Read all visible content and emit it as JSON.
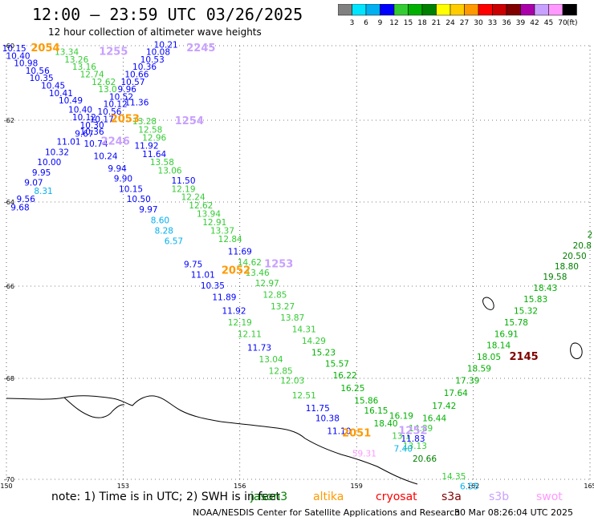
{
  "header": {
    "title": "12:00 – 23:59 UTC 03/26/2025",
    "subtitle": "12 hour collection of altimeter wave heights"
  },
  "legend": {
    "unit": "(ft)",
    "bins": [
      {
        "label": "3",
        "color": "#808080"
      },
      {
        "label": "6",
        "color": "#00e5ff"
      },
      {
        "label": "9",
        "color": "#00b0f0"
      },
      {
        "label": "12",
        "color": "#0000ff"
      },
      {
        "label": "15",
        "color": "#33cc33"
      },
      {
        "label": "18",
        "color": "#00b000"
      },
      {
        "label": "21",
        "color": "#008000"
      },
      {
        "label": "24",
        "color": "#ffff00"
      },
      {
        "label": "27",
        "color": "#ffcc00"
      },
      {
        "label": "30",
        "color": "#ff9900"
      },
      {
        "label": "33",
        "color": "#ff0000"
      },
      {
        "label": "36",
        "color": "#cc0000"
      },
      {
        "label": "39",
        "color": "#800000"
      },
      {
        "label": "42",
        "color": "#aa00aa"
      },
      {
        "label": "45",
        "color": "#c8a0ff"
      },
      {
        "label": "70",
        "color": "#ff99ff"
      },
      {
        "label": "",
        "color": "#000000"
      }
    ]
  },
  "map": {
    "lon_ticks": [
      "150",
      "153",
      "156",
      "159",
      "162",
      "165"
    ],
    "lat_ticks": [
      "-60",
      "-62",
      "-64",
      "-66",
      "-68",
      "-70"
    ],
    "lon_range": [
      150,
      165
    ],
    "lat_range": [
      -60,
      -70
    ]
  },
  "pass_times": [
    {
      "text": "2054",
      "lon": 151.0,
      "lat": -60.15,
      "color": "#ff9900"
    },
    {
      "text": "1255",
      "lon": 152.75,
      "lat": -60.25,
      "color": "#c8a0ff"
    },
    {
      "text": "2245",
      "lon": 155.0,
      "lat": -60.15,
      "color": "#c8a0ff"
    },
    {
      "text": "2053",
      "lon": 153.05,
      "lat": -62.05,
      "color": "#ff9900"
    },
    {
      "text": "1254",
      "lon": 154.7,
      "lat": -62.1,
      "color": "#c8a0ff"
    },
    {
      "text": "2246",
      "lon": 152.8,
      "lat": -62.6,
      "color": "#c8a0ff"
    },
    {
      "text": "2052",
      "lon": 155.9,
      "lat": -65.7,
      "color": "#ff9900"
    },
    {
      "text": "1253",
      "lon": 157.0,
      "lat": -65.55,
      "color": "#c8a0ff"
    },
    {
      "text": "2051",
      "lon": 159.0,
      "lat": -69.15,
      "color": "#ff9900"
    },
    {
      "text": "1252",
      "lon": 160.45,
      "lat": -69.1,
      "color": "#c8a0ff"
    },
    {
      "text": "2145",
      "lon": 163.3,
      "lat": -67.6,
      "color": "#800000"
    }
  ],
  "wave_heights": [
    {
      "text": "10.15",
      "lon": 150.2,
      "lat": -60.15,
      "color": "#0000ff"
    },
    {
      "text": "10.40",
      "lon": 150.3,
      "lat": -60.35,
      "color": "#0000ff"
    },
    {
      "text": "10.98",
      "lon": 150.5,
      "lat": -60.55,
      "color": "#0000ff"
    },
    {
      "text": "10.56",
      "lon": 150.8,
      "lat": -60.75,
      "color": "#0000ff"
    },
    {
      "text": "10.35",
      "lon": 150.9,
      "lat": -60.95,
      "color": "#0000ff"
    },
    {
      "text": "10.45",
      "lon": 151.2,
      "lat": -61.15,
      "color": "#0000ff"
    },
    {
      "text": "10.41",
      "lon": 151.4,
      "lat": -61.35,
      "color": "#0000ff"
    },
    {
      "text": "10.49",
      "lon": 151.65,
      "lat": -61.55,
      "color": "#0000ff"
    },
    {
      "text": "10.40",
      "lon": 151.9,
      "lat": -61.8,
      "color": "#0000ff"
    },
    {
      "text": "10.12",
      "lon": 152.0,
      "lat": -62.0,
      "color": "#0000ff"
    },
    {
      "text": "10.30",
      "lon": 152.2,
      "lat": -62.2,
      "color": "#0000ff"
    },
    {
      "text": "9.67",
      "lon": 152.0,
      "lat": -62.4,
      "color": "#0000ff"
    },
    {
      "text": "11.01",
      "lon": 151.6,
      "lat": -62.6,
      "color": "#0000ff"
    },
    {
      "text": "10.32",
      "lon": 151.3,
      "lat": -62.85,
      "color": "#0000ff"
    },
    {
      "text": "10.00",
      "lon": 151.1,
      "lat": -63.1,
      "color": "#0000ff"
    },
    {
      "text": "9.95",
      "lon": 150.9,
      "lat": -63.35,
      "color": "#0000ff"
    },
    {
      "text": "9.07",
      "lon": 150.7,
      "lat": -63.6,
      "color": "#0000ff"
    },
    {
      "text": "8.31",
      "lon": 150.95,
      "lat": -63.8,
      "color": "#00b0f0"
    },
    {
      "text": "9.56",
      "lon": 150.5,
      "lat": -64.0,
      "color": "#0000ff"
    },
    {
      "text": "9.68",
      "lon": 150.35,
      "lat": -64.2,
      "color": "#0000ff"
    },
    {
      "text": "13.34",
      "lon": 151.55,
      "lat": -60.25,
      "color": "#33cc33"
    },
    {
      "text": "13.26",
      "lon": 151.8,
      "lat": -60.45,
      "color": "#33cc33"
    },
    {
      "text": "13.16",
      "lon": 152.0,
      "lat": -60.65,
      "color": "#33cc33"
    },
    {
      "text": "12.74",
      "lon": 152.2,
      "lat": -60.85,
      "color": "#33cc33"
    },
    {
      "text": "12.62",
      "lon": 152.5,
      "lat": -61.05,
      "color": "#33cc33"
    },
    {
      "text": "13.0",
      "lon": 152.6,
      "lat": -61.25,
      "color": "#33cc33"
    },
    {
      "text": "10.21",
      "lon": 154.1,
      "lat": -60.05,
      "color": "#0000ff"
    },
    {
      "text": "10.08",
      "lon": 153.9,
      "lat": -60.25,
      "color": "#0000ff"
    },
    {
      "text": "10.53",
      "lon": 153.75,
      "lat": -60.45,
      "color": "#0000ff"
    },
    {
      "text": "10.36",
      "lon": 153.55,
      "lat": -60.65,
      "color": "#0000ff"
    },
    {
      "text": "10.66",
      "lon": 153.35,
      "lat": -60.85,
      "color": "#0000ff"
    },
    {
      "text": "10.57",
      "lon": 153.25,
      "lat": -61.05,
      "color": "#0000ff"
    },
    {
      "text": "9.96",
      "lon": 153.1,
      "lat": -61.25,
      "color": "#0000ff"
    },
    {
      "text": "10.52",
      "lon": 152.95,
      "lat": -61.45,
      "color": "#0000ff"
    },
    {
      "text": "11.36",
      "lon": 153.35,
      "lat": -61.6,
      "color": "#0000ff"
    },
    {
      "text": "10.12",
      "lon": 152.8,
      "lat": -61.65,
      "color": "#0000ff"
    },
    {
      "text": "10.56",
      "lon": 152.65,
      "lat": -61.85,
      "color": "#0000ff"
    },
    {
      "text": "10.17",
      "lon": 152.45,
      "lat": -62.05,
      "color": "#0000ff"
    },
    {
      "text": "10.36",
      "lon": 152.2,
      "lat": -62.35,
      "color": "#0000ff"
    },
    {
      "text": "10.74",
      "lon": 152.3,
      "lat": -62.65,
      "color": "#0000ff"
    },
    {
      "text": "10.24",
      "lon": 152.55,
      "lat": -62.95,
      "color": "#0000ff"
    },
    {
      "text": "9.94",
      "lon": 152.85,
      "lat": -63.25,
      "color": "#0000ff"
    },
    {
      "text": "9.90",
      "lon": 153.0,
      "lat": -63.5,
      "color": "#0000ff"
    },
    {
      "text": "10.15",
      "lon": 153.2,
      "lat": -63.75,
      "color": "#0000ff"
    },
    {
      "text": "10.50",
      "lon": 153.4,
      "lat": -64.0,
      "color": "#0000ff"
    },
    {
      "text": "9.97",
      "lon": 153.65,
      "lat": -64.25,
      "color": "#0000ff"
    },
    {
      "text": "8.60",
      "lon": 153.95,
      "lat": -64.5,
      "color": "#00b0f0"
    },
    {
      "text": "8.28",
      "lon": 154.05,
      "lat": -64.75,
      "color": "#00b0f0"
    },
    {
      "text": "6.57",
      "lon": 154.3,
      "lat": -65.0,
      "color": "#00b0f0"
    },
    {
      "text": "13.28",
      "lon": 153.55,
      "lat": -62.1,
      "color": "#33cc33"
    },
    {
      "text": "12.58",
      "lon": 153.7,
      "lat": -62.3,
      "color": "#33cc33"
    },
    {
      "text": "12.96",
      "lon": 153.8,
      "lat": -62.5,
      "color": "#33cc33"
    },
    {
      "text": "11.92",
      "lon": 153.6,
      "lat": -62.7,
      "color": "#0000ff"
    },
    {
      "text": "11.64",
      "lon": 153.8,
      "lat": -62.9,
      "color": "#0000ff"
    },
    {
      "text": "13.58",
      "lon": 154.0,
      "lat": -63.1,
      "color": "#33cc33"
    },
    {
      "text": "13.06",
      "lon": 154.2,
      "lat": -63.3,
      "color": "#33cc33"
    },
    {
      "text": "11.50",
      "lon": 154.55,
      "lat": -63.55,
      "color": "#0000ff"
    },
    {
      "text": "12.19",
      "lon": 154.55,
      "lat": -63.75,
      "color": "#33cc33"
    },
    {
      "text": "12.24",
      "lon": 154.8,
      "lat": -63.95,
      "color": "#33cc33"
    },
    {
      "text": "12.62",
      "lon": 155.0,
      "lat": -64.15,
      "color": "#33cc33"
    },
    {
      "text": "13.94",
      "lon": 155.2,
      "lat": -64.35,
      "color": "#33cc33"
    },
    {
      "text": "12.91",
      "lon": 155.35,
      "lat": -64.55,
      "color": "#33cc33"
    },
    {
      "text": "13.37",
      "lon": 155.55,
      "lat": -64.75,
      "color": "#33cc33"
    },
    {
      "text": "12.84",
      "lon": 155.75,
      "lat": -64.95,
      "color": "#33cc33"
    },
    {
      "text": "11.69",
      "lon": 156.0,
      "lat": -65.25,
      "color": "#0000ff"
    },
    {
      "text": "14.62",
      "lon": 156.25,
      "lat": -65.5,
      "color": "#33cc33"
    },
    {
      "text": "13.46",
      "lon": 156.45,
      "lat": -65.75,
      "color": "#33cc33"
    },
    {
      "text": "12.97",
      "lon": 156.7,
      "lat": -66.0,
      "color": "#33cc33"
    },
    {
      "text": "12.85",
      "lon": 156.9,
      "lat": -66.25,
      "color": "#33cc33"
    },
    {
      "text": "13.27",
      "lon": 157.1,
      "lat": -66.5,
      "color": "#33cc33"
    },
    {
      "text": "13.87",
      "lon": 157.35,
      "lat": -66.75,
      "color": "#33cc33"
    },
    {
      "text": "14.31",
      "lon": 157.65,
      "lat": -67.0,
      "color": "#33cc33"
    },
    {
      "text": "14.29",
      "lon": 157.9,
      "lat": -67.25,
      "color": "#33cc33"
    },
    {
      "text": "15.23",
      "lon": 158.15,
      "lat": -67.5,
      "color": "#00b000"
    },
    {
      "text": "15.57",
      "lon": 158.5,
      "lat": -67.75,
      "color": "#00b000"
    },
    {
      "text": "16.22",
      "lon": 158.7,
      "lat": -68.0,
      "color": "#00b000"
    },
    {
      "text": "16.25",
      "lon": 158.9,
      "lat": -68.25,
      "color": "#00b000"
    },
    {
      "text": "15.86",
      "lon": 159.25,
      "lat": -68.5,
      "color": "#00b000"
    },
    {
      "text": "16.15",
      "lon": 159.5,
      "lat": -68.7,
      "color": "#00b000"
    },
    {
      "text": "18.40",
      "lon": 159.75,
      "lat": -68.95,
      "color": "#00b000"
    },
    {
      "text": "13.1",
      "lon": 160.15,
      "lat": -69.2,
      "color": "#33cc33"
    },
    {
      "text": "13.13",
      "lon": 160.5,
      "lat": -69.4,
      "color": "#33cc33"
    },
    {
      "text": "20.66",
      "lon": 160.75,
      "lat": -69.65,
      "color": "#008000"
    },
    {
      "text": "14.35",
      "lon": 161.5,
      "lat": -70.0,
      "color": "#33cc33"
    },
    {
      "text": "6.55",
      "lon": 161.9,
      "lat": -70.2,
      "color": "#00b0f0"
    },
    {
      "text": "9.75",
      "lon": 154.8,
      "lat": -65.55,
      "color": "#0000ff"
    },
    {
      "text": "11.01",
      "lon": 155.05,
      "lat": -65.8,
      "color": "#0000ff"
    },
    {
      "text": "10.35",
      "lon": 155.3,
      "lat": -66.05,
      "color": "#0000ff"
    },
    {
      "text": "11.89",
      "lon": 155.6,
      "lat": -66.3,
      "color": "#0000ff"
    },
    {
      "text": "11.92",
      "lon": 155.85,
      "lat": -66.6,
      "color": "#0000ff"
    },
    {
      "text": "12.19",
      "lon": 156.0,
      "lat": -66.85,
      "color": "#33cc33"
    },
    {
      "text": "12.11",
      "lon": 156.25,
      "lat": -67.1,
      "color": "#33cc33"
    },
    {
      "text": "11.73",
      "lon": 156.5,
      "lat": -67.4,
      "color": "#0000ff"
    },
    {
      "text": "13.04",
      "lon": 156.8,
      "lat": -67.65,
      "color": "#33cc33"
    },
    {
      "text": "12.85",
      "lon": 157.05,
      "lat": -67.9,
      "color": "#33cc33"
    },
    {
      "text": "12.03",
      "lon": 157.35,
      "lat": -68.1,
      "color": "#33cc33"
    },
    {
      "text": "12.51",
      "lon": 157.65,
      "lat": -68.4,
      "color": "#33cc33"
    },
    {
      "text": "11.75",
      "lon": 158.0,
      "lat": -68.65,
      "color": "#0000ff"
    },
    {
      "text": "10.38",
      "lon": 158.25,
      "lat": -68.85,
      "color": "#0000ff"
    },
    {
      "text": "11.10",
      "lon": 158.55,
      "lat": -69.1,
      "color": "#0000ff"
    },
    {
      "text": "59.31",
      "lon": 159.2,
      "lat": -69.55,
      "color": "#ff99ff"
    },
    {
      "text": "16.19",
      "lon": 160.15,
      "lat": -68.8,
      "color": "#00b000"
    },
    {
      "text": "14.89",
      "lon": 160.65,
      "lat": -69.05,
      "color": "#33cc33"
    },
    {
      "text": "11.83",
      "lon": 160.45,
      "lat": -69.25,
      "color": "#0000ff"
    },
    {
      "text": "7.40",
      "lon": 160.2,
      "lat": -69.45,
      "color": "#00b0f0"
    },
    {
      "text": "16.44",
      "lon": 161.0,
      "lat": -68.85,
      "color": "#00b000"
    },
    {
      "text": "17.42",
      "lon": 161.25,
      "lat": -68.6,
      "color": "#00b000"
    },
    {
      "text": "17.64",
      "lon": 161.55,
      "lat": -68.35,
      "color": "#00b000"
    },
    {
      "text": "17.39",
      "lon": 161.85,
      "lat": -68.1,
      "color": "#00b000"
    },
    {
      "text": "18.59",
      "lon": 162.15,
      "lat": -67.85,
      "color": "#00b000"
    },
    {
      "text": "18.05",
      "lon": 162.4,
      "lat": -67.6,
      "color": "#00b000"
    },
    {
      "text": "18.14",
      "lon": 162.65,
      "lat": -67.35,
      "color": "#00b000"
    },
    {
      "text": "16.91",
      "lon": 162.85,
      "lat": -67.1,
      "color": "#00b000"
    },
    {
      "text": "15.78",
      "lon": 163.1,
      "lat": -66.85,
      "color": "#00b000"
    },
    {
      "text": "15.32",
      "lon": 163.35,
      "lat": -66.6,
      "color": "#00b000"
    },
    {
      "text": "15.83",
      "lon": 163.6,
      "lat": -66.35,
      "color": "#00b000"
    },
    {
      "text": "18.43",
      "lon": 163.85,
      "lat": -66.1,
      "color": "#00b000"
    },
    {
      "text": "19.58",
      "lon": 164.1,
      "lat": -65.85,
      "color": "#008000"
    },
    {
      "text": "18.80",
      "lon": 164.4,
      "lat": -65.6,
      "color": "#008000"
    },
    {
      "text": "20.50",
      "lon": 164.6,
      "lat": -65.35,
      "color": "#008000"
    },
    {
      "text": "20.8",
      "lon": 164.8,
      "lat": -65.1,
      "color": "#008000"
    },
    {
      "text": "2",
      "lon": 165.0,
      "lat": -64.85,
      "color": "#008000"
    }
  ],
  "footer": {
    "note": "note:  1) Time is in UTC; 2) SWH is in feet",
    "satellites": [
      {
        "name": "jason3",
        "color": "#008000"
      },
      {
        "name": "altika",
        "color": "#ff9900"
      },
      {
        "name": "cryosat",
        "color": "#ff0000"
      },
      {
        "name": "s3a",
        "color": "#800000"
      },
      {
        "name": "s3b",
        "color": "#c8a0ff"
      },
      {
        "name": "swot",
        "color": "#ff99ff"
      }
    ],
    "credit": "NOAA/NESDIS Center for Satellite Applications and Research",
    "generated": "30 Mar 08:26:04 UTC 2025"
  }
}
